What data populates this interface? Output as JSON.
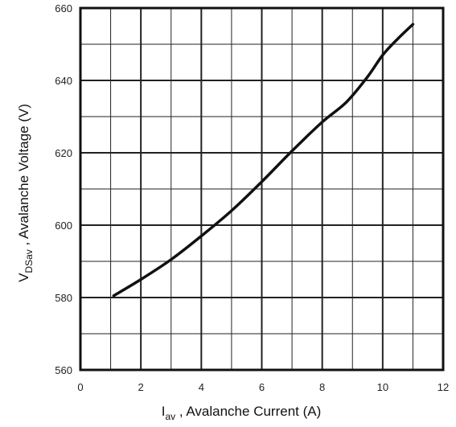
{
  "chart_data": {
    "type": "line",
    "xlabel_main": "I",
    "xlabel_sub": "av",
    "xlabel_rest": " , Avalanche Current  (A)",
    "ylabel_main": "V",
    "ylabel_sub": "DSav",
    "ylabel_rest": " , Avalanche Voltage (V)",
    "xlim": [
      0,
      12
    ],
    "ylim": [
      560,
      660
    ],
    "x_major_ticks": [
      0,
      2,
      4,
      6,
      8,
      10,
      12
    ],
    "y_major_ticks": [
      560,
      580,
      600,
      620,
      640,
      660
    ],
    "x_tick_labels": [
      "0",
      "2",
      "4",
      "6",
      "8",
      "10",
      "12"
    ],
    "y_tick_labels": [
      "560",
      "580",
      "600",
      "620",
      "640",
      "660"
    ],
    "x_minor_step": 1,
    "y_minor_step": 10,
    "grid": true,
    "series": [
      {
        "color": "#111111",
        "x": [
          1.1,
          2.0,
          3.0,
          4.0,
          5.0,
          6.0,
          7.0,
          8.0,
          8.8,
          9.5,
          10.0,
          10.5,
          11.0
        ],
        "y": [
          580.5,
          585,
          590.5,
          597,
          604,
          612,
          620.5,
          628.5,
          634,
          641,
          647,
          651.5,
          655.5
        ]
      }
    ]
  }
}
